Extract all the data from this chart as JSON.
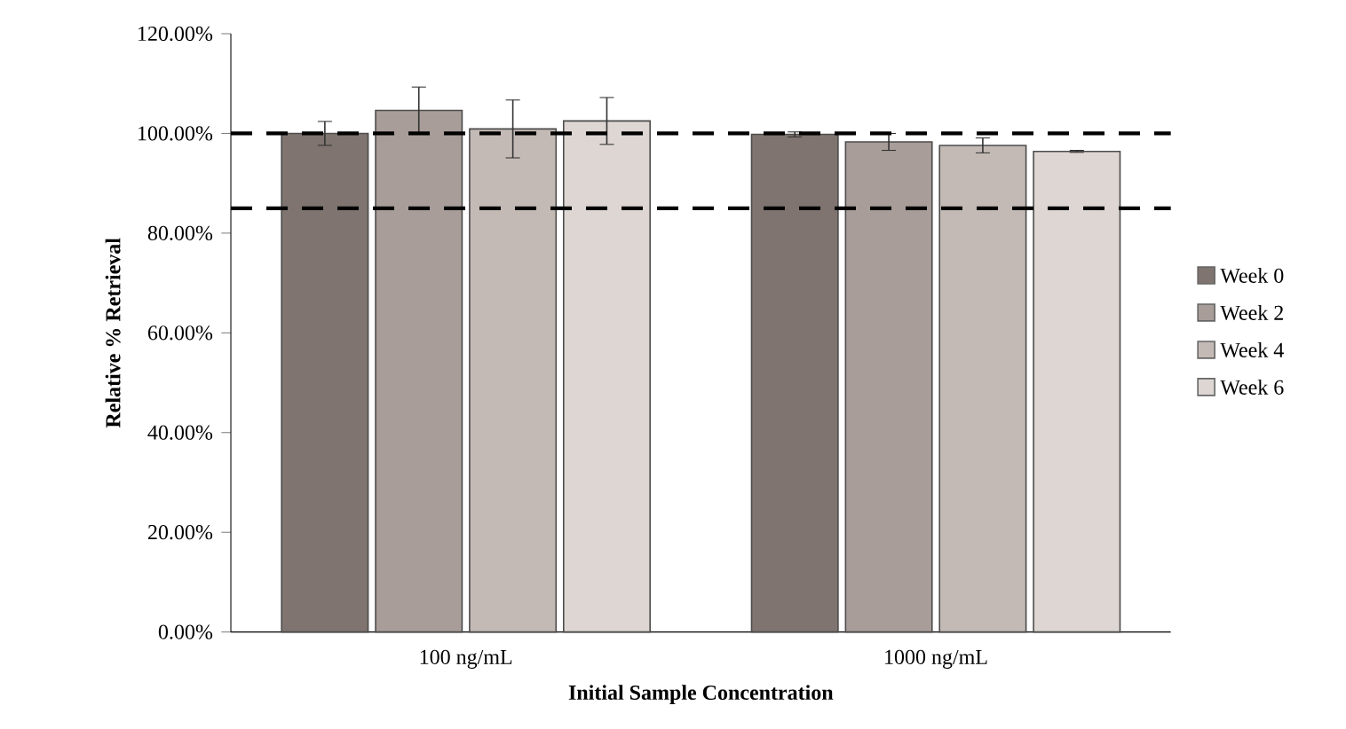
{
  "chart_data": {
    "type": "bar",
    "xlabel": "Initial Sample Concentration",
    "ylabel": "Relative % Retrieval",
    "categories": [
      "100 ng/mL",
      "1000 ng/mL"
    ],
    "series": [
      {
        "name": "Week 0",
        "color": "#7f746f",
        "values": [
          100,
          99.8
        ],
        "errors": [
          2.4,
          0.5
        ]
      },
      {
        "name": "Week 2",
        "color": "#a89d98",
        "values": [
          104.6,
          98.3
        ],
        "errors": [
          4.7,
          1.7
        ]
      },
      {
        "name": "Week 4",
        "color": "#c4bab5",
        "values": [
          100.9,
          97.6
        ],
        "errors": [
          5.8,
          1.5
        ]
      },
      {
        "name": "Week 6",
        "color": "#ddd6d2",
        "values": [
          102.5,
          96.4
        ],
        "errors": [
          4.7,
          0.2
        ]
      }
    ],
    "ylim": [
      0,
      120
    ],
    "yticks": [
      {
        "value": 0,
        "label": "0.00%"
      },
      {
        "value": 20,
        "label": "20.00%"
      },
      {
        "value": 40,
        "label": "40.00%"
      },
      {
        "value": 60,
        "label": "60.00%"
      },
      {
        "value": 80,
        "label": "80.00%"
      },
      {
        "value": 100,
        "label": "100.00%"
      },
      {
        "value": 120,
        "label": "120.00%"
      }
    ],
    "ref_lines": [
      {
        "axis": "y",
        "value": 100,
        "line_style": "dashed",
        "color": "#000000"
      },
      {
        "axis": "y",
        "value": 85,
        "line_style": "dashed",
        "color": "#000000"
      }
    ],
    "legend": "right",
    "grid": false
  }
}
